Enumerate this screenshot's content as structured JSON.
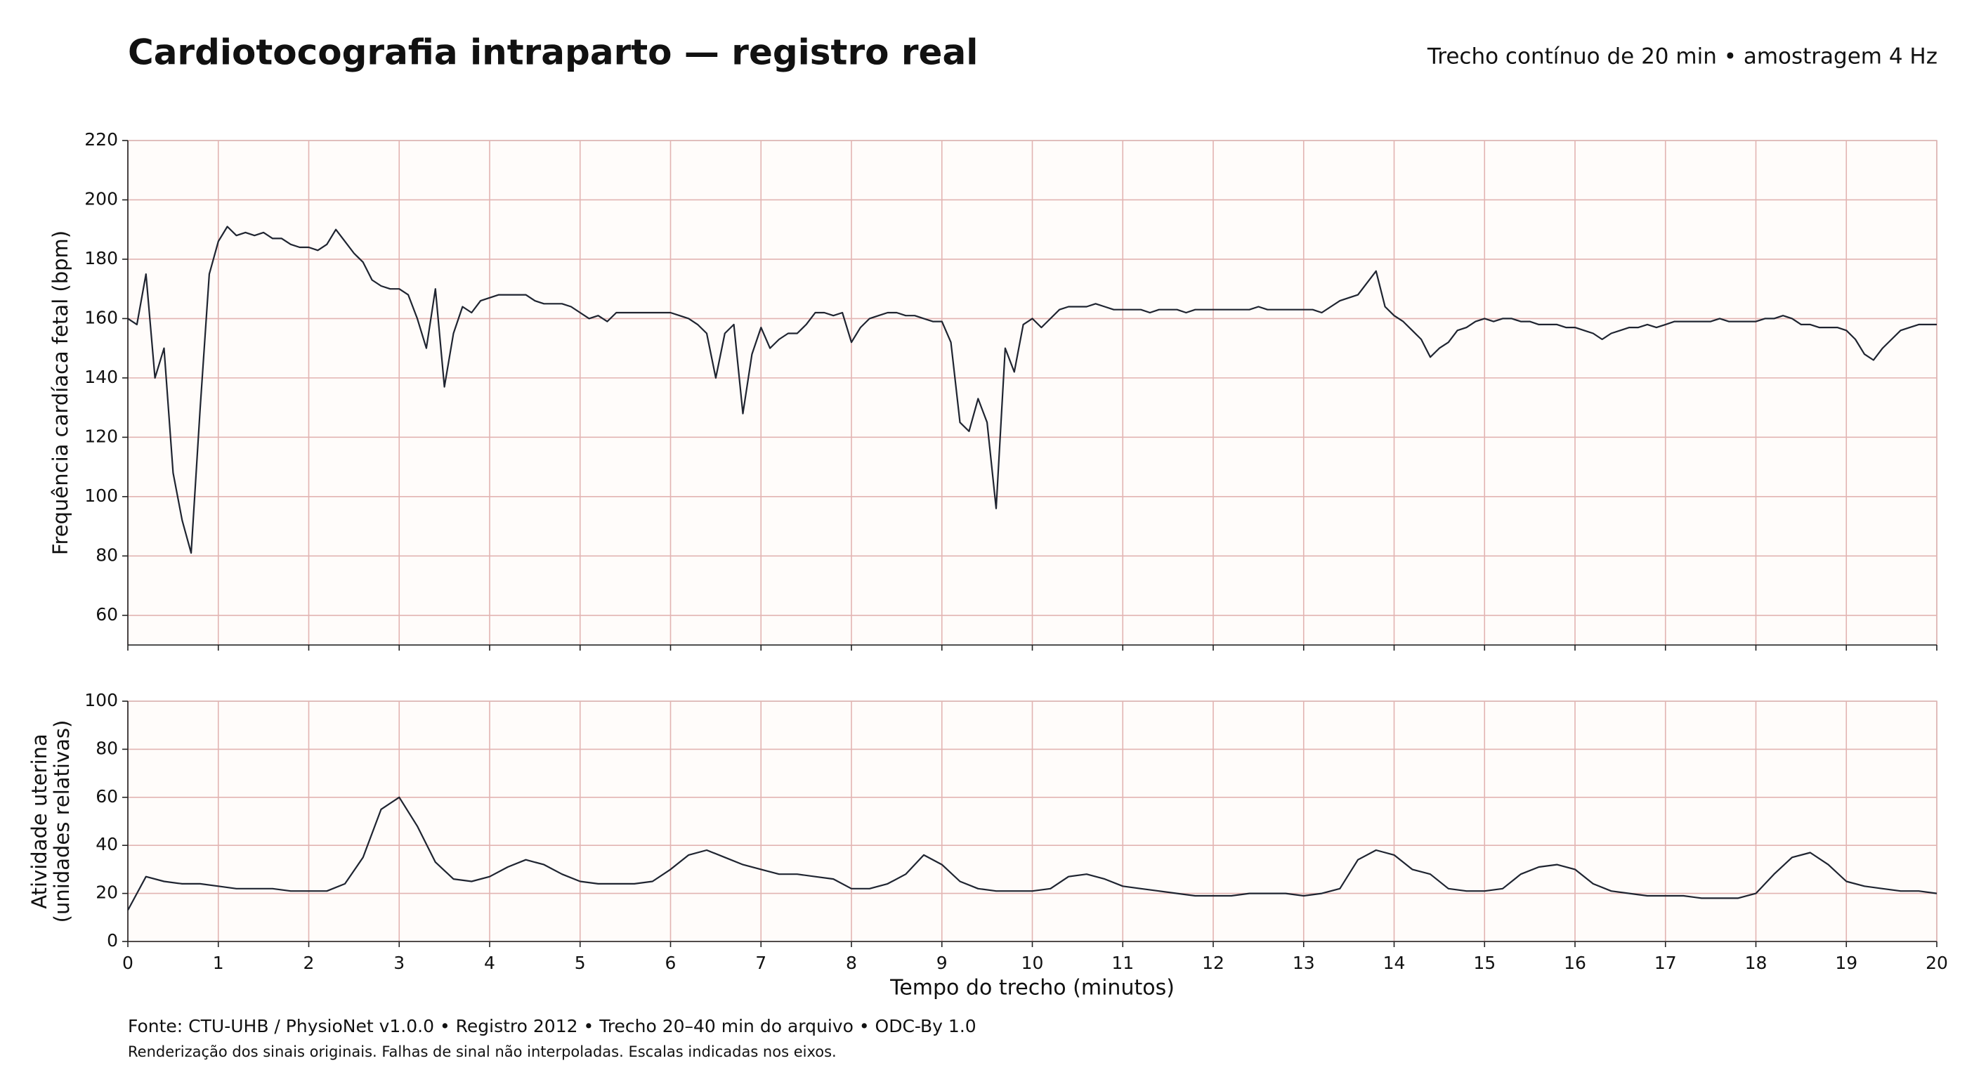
{
  "title": "Cardiotocografia intraparto — registro real",
  "subtitle": "Trecho contínuo de 20 min • amostragem 4 Hz",
  "source": "Fonte: CTU-UHB / PhysioNet v1.0.0 • Registro 2012 • Trecho 20–40 min do arquivo • ODC-By 1.0",
  "note": "Renderização dos sinais originais. Falhas de sinal não interpoladas. Escalas indicadas nos eixos.",
  "chart_data": [
    {
      "type": "line",
      "ylabel": [
        "Frequência cardíaca fetal (bpm)"
      ],
      "grid": true,
      "xlim": [
        0,
        20
      ],
      "xticks": [
        0,
        1,
        2,
        3,
        4,
        5,
        6,
        7,
        8,
        9,
        10,
        11,
        12,
        13,
        14,
        15,
        16,
        17,
        18,
        19,
        20
      ],
      "ylim": [
        50,
        220
      ],
      "yticks": [
        60,
        80,
        100,
        120,
        140,
        160,
        180,
        200,
        220
      ],
      "x": [
        0,
        0.1,
        0.2,
        0.3,
        0.4,
        0.5,
        0.6,
        0.7,
        0.8,
        0.9,
        1,
        1.1,
        1.2,
        1.3,
        1.4,
        1.5,
        1.6,
        1.7,
        1.8,
        1.9,
        2,
        2.1,
        2.2,
        2.3,
        2.4,
        2.5,
        2.6,
        2.7,
        2.8,
        2.9,
        3,
        3.1,
        3.2,
        3.3,
        3.4,
        3.5,
        3.6,
        3.7,
        3.8,
        3.9,
        4,
        4.1,
        4.2,
        4.3,
        4.4,
        4.5,
        4.6,
        4.7,
        4.8,
        4.9,
        5,
        5.1,
        5.2,
        5.3,
        5.4,
        5.5,
        5.6,
        5.7,
        5.8,
        5.9,
        6,
        6.1,
        6.2,
        6.3,
        6.4,
        6.5,
        6.6,
        6.7,
        6.8,
        6.9,
        7,
        7.1,
        7.2,
        7.3,
        7.4,
        7.5,
        7.6,
        7.7,
        7.8,
        7.9,
        8,
        8.1,
        8.2,
        8.3,
        8.4,
        8.5,
        8.6,
        8.7,
        8.8,
        8.9,
        9,
        9.1,
        9.2,
        9.3,
        9.4,
        9.5,
        9.6,
        9.7,
        9.8,
        9.9,
        10,
        10.1,
        10.2,
        10.3,
        10.4,
        10.5,
        10.6,
        10.7,
        10.8,
        10.9,
        11,
        11.1,
        11.2,
        11.3,
        11.4,
        11.5,
        11.6,
        11.7,
        11.8,
        11.9,
        12,
        12.1,
        12.2,
        12.3,
        12.4,
        12.5,
        12.6,
        12.7,
        12.8,
        12.9,
        13,
        13.1,
        13.2,
        13.3,
        13.4,
        13.5,
        13.6,
        13.7,
        13.8,
        13.9,
        14,
        14.1,
        14.2,
        14.3,
        14.4,
        14.5,
        14.6,
        14.7,
        14.8,
        14.9,
        15,
        15.1,
        15.2,
        15.3,
        15.4,
        15.5,
        15.6,
        15.7,
        15.8,
        15.9,
        16,
        16.1,
        16.2,
        16.3,
        16.4,
        16.5,
        16.6,
        16.7,
        16.8,
        16.9,
        17,
        17.1,
        17.2,
        17.3,
        17.4,
        17.5,
        17.6,
        17.7,
        17.8,
        17.9,
        18,
        18.1,
        18.2,
        18.3,
        18.4,
        18.5,
        18.6,
        18.7,
        18.8,
        18.9,
        19,
        19.1,
        19.2,
        19.3,
        19.4,
        19.5,
        19.6,
        19.7,
        19.8,
        19.9,
        20
      ],
      "series": [
        {
          "color": "#1f2430",
          "values": [
            160,
            158,
            175,
            140,
            150,
            108,
            92,
            81,
            130,
            175,
            186,
            191,
            188,
            189,
            188,
            189,
            187,
            187,
            185,
            184,
            184,
            183,
            185,
            190,
            186,
            182,
            179,
            173,
            171,
            170,
            170,
            168,
            160,
            150,
            170,
            137,
            155,
            164,
            162,
            166,
            167,
            168,
            168,
            168,
            168,
            166,
            165,
            165,
            165,
            164,
            162,
            160,
            161,
            159,
            162,
            162,
            162,
            162,
            162,
            162,
            162,
            161,
            160,
            158,
            155,
            140,
            155,
            158,
            128,
            148,
            157,
            150,
            153,
            155,
            155,
            158,
            162,
            162,
            161,
            162,
            152,
            157,
            160,
            161,
            162,
            162,
            161,
            161,
            160,
            159,
            159,
            152,
            125,
            122,
            133,
            125,
            96,
            150,
            142,
            158,
            160,
            157,
            160,
            163,
            164,
            164,
            164,
            165,
            164,
            163,
            163,
            163,
            163,
            162,
            163,
            163,
            163,
            162,
            163,
            163,
            163,
            163,
            163,
            163,
            163,
            164,
            163,
            163,
            163,
            163,
            163,
            163,
            162,
            164,
            166,
            167,
            168,
            172,
            176,
            164,
            161,
            159,
            156,
            153,
            147,
            150,
            152,
            156,
            157,
            159,
            160,
            159,
            160,
            160,
            159,
            159,
            158,
            158,
            158,
            157,
            157,
            156,
            155,
            153,
            155,
            156,
            157,
            157,
            158,
            157,
            158,
            159,
            159,
            159,
            159,
            159,
            160,
            159,
            159,
            159,
            159,
            160,
            160,
            161,
            160,
            158,
            158,
            157,
            157,
            157,
            156,
            153,
            148,
            146,
            150,
            153,
            156,
            157,
            158,
            158,
            158
          ]
        }
      ]
    },
    {
      "type": "line",
      "ylabel": [
        "Atividade uterina",
        "(unidades relativas)"
      ],
      "xlabel": "Tempo do trecho (minutos)",
      "grid": true,
      "xlim": [
        0,
        20
      ],
      "xticks": [
        0,
        1,
        2,
        3,
        4,
        5,
        6,
        7,
        8,
        9,
        10,
        11,
        12,
        13,
        14,
        15,
        16,
        17,
        18,
        19,
        20
      ],
      "ylim": [
        0,
        100
      ],
      "yticks": [
        0,
        20,
        40,
        60,
        80,
        100
      ],
      "x": [
        0,
        0.2,
        0.4,
        0.6,
        0.8,
        1,
        1.2,
        1.4,
        1.6,
        1.8,
        2,
        2.2,
        2.4,
        2.6,
        2.8,
        3,
        3.2,
        3.4,
        3.6,
        3.8,
        4,
        4.2,
        4.4,
        4.6,
        4.8,
        5,
        5.2,
        5.4,
        5.6,
        5.8,
        6,
        6.2,
        6.4,
        6.6,
        6.8,
        7,
        7.2,
        7.4,
        7.6,
        7.8,
        8,
        8.2,
        8.4,
        8.6,
        8.8,
        9,
        9.2,
        9.4,
        9.6,
        9.8,
        10,
        10.2,
        10.4,
        10.6,
        10.8,
        11,
        11.2,
        11.4,
        11.6,
        11.8,
        12,
        12.2,
        12.4,
        12.6,
        12.8,
        13,
        13.2,
        13.4,
        13.6,
        13.8,
        14,
        14.2,
        14.4,
        14.6,
        14.8,
        15,
        15.2,
        15.4,
        15.6,
        15.8,
        16,
        16.2,
        16.4,
        16.6,
        16.8,
        17,
        17.2,
        17.4,
        17.6,
        17.8,
        18,
        18.2,
        18.4,
        18.6,
        18.8,
        19,
        19.2,
        19.4,
        19.6,
        19.8,
        20
      ],
      "series": [
        {
          "color": "#1f2430",
          "values": [
            13,
            27,
            25,
            24,
            24,
            23,
            22,
            22,
            22,
            21,
            21,
            21,
            24,
            35,
            55,
            60,
            48,
            33,
            26,
            25,
            27,
            31,
            34,
            32,
            28,
            25,
            24,
            24,
            24,
            25,
            30,
            36,
            38,
            35,
            32,
            30,
            28,
            28,
            27,
            26,
            22,
            22,
            24,
            28,
            36,
            32,
            25,
            22,
            21,
            21,
            21,
            22,
            27,
            28,
            26,
            23,
            22,
            21,
            20,
            19,
            19,
            19,
            20,
            20,
            20,
            19,
            20,
            22,
            34,
            38,
            36,
            30,
            28,
            22,
            21,
            21,
            22,
            28,
            31,
            32,
            30,
            24,
            21,
            20,
            19,
            19,
            19,
            18,
            18,
            18,
            20,
            28,
            35,
            37,
            32,
            25,
            23,
            22,
            21,
            21,
            20
          ]
        }
      ]
    }
  ]
}
